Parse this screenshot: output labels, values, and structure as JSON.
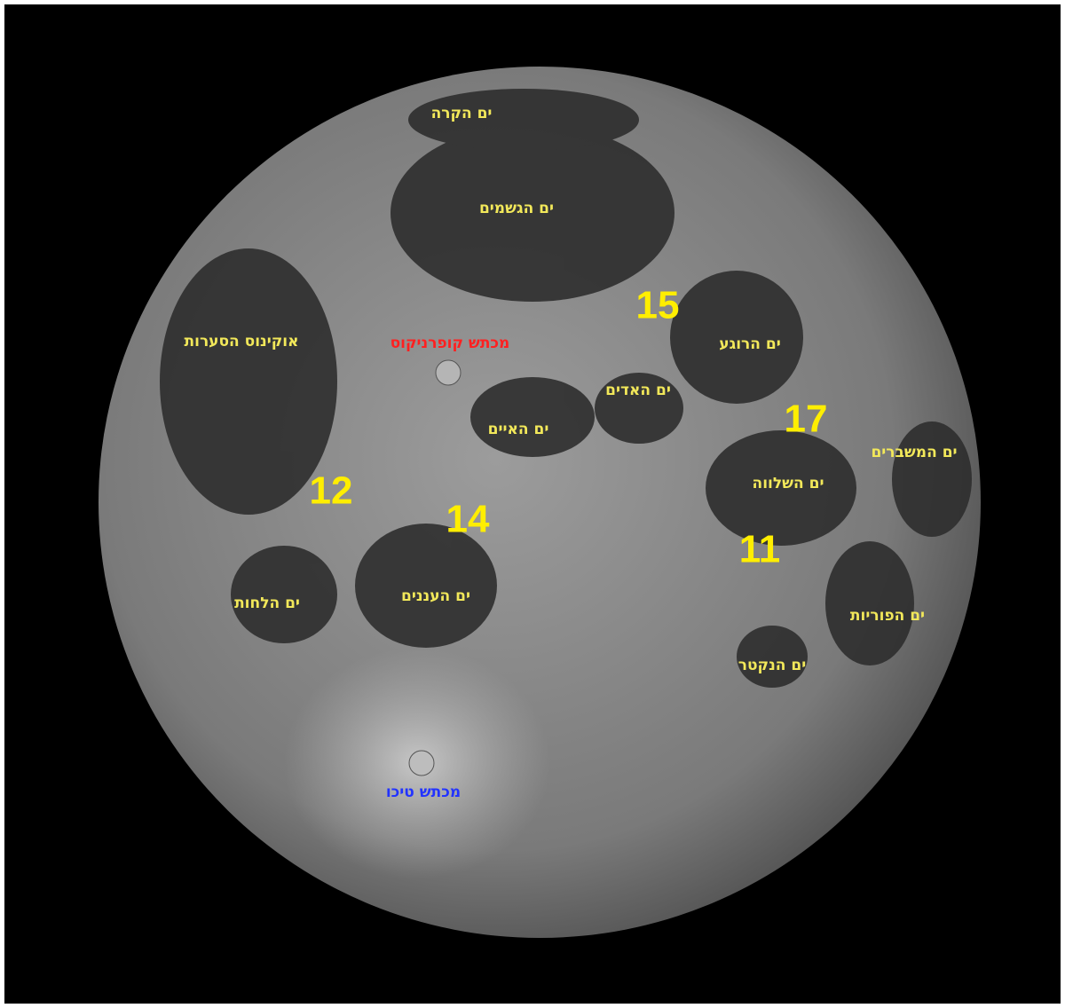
{
  "seas": [
    {
      "label": "ים הקרה"
    },
    {
      "label": "ים הגשמים"
    },
    {
      "label": "אוקינוס הסערות"
    },
    {
      "label": "ים הרוגע"
    },
    {
      "label": "ים האדים"
    },
    {
      "label": "ים האיים"
    },
    {
      "label": "ים המשברים"
    },
    {
      "label": "ים השלווה"
    },
    {
      "label": "ים הלחות"
    },
    {
      "label": "ים העננים"
    },
    {
      "label": "ים הפוריות"
    },
    {
      "label": "ים הנקטר"
    }
  ],
  "craters": [
    {
      "label": "מכתש קופרניקוס",
      "color": "red"
    },
    {
      "label": "מכתש טיכו",
      "color": "blue"
    }
  ],
  "landing_sites": [
    {
      "label": "15"
    },
    {
      "label": "17"
    },
    {
      "label": "12"
    },
    {
      "label": "14"
    },
    {
      "label": "11"
    }
  ]
}
